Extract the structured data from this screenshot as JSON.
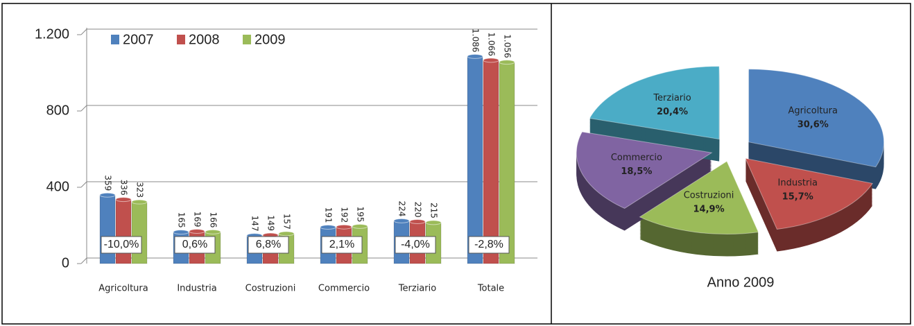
{
  "chart_data": [
    {
      "type": "bar",
      "categories": [
        "Agricoltura",
        "Industria",
        "Costruzioni",
        "Commercio",
        "Terziario",
        "Totale"
      ],
      "series": [
        {
          "name": "2007",
          "color": "#4f81bd",
          "values": [
            359,
            165,
            147,
            191,
            224,
            1086
          ],
          "value_labels": [
            "359",
            "165",
            "147",
            "191",
            "224",
            "1.086"
          ]
        },
        {
          "name": "2008",
          "color": "#c0504d",
          "values": [
            336,
            169,
            149,
            192,
            220,
            1066
          ],
          "value_labels": [
            "336",
            "169",
            "149",
            "192",
            "220",
            "1.066"
          ]
        },
        {
          "name": "2009",
          "color": "#9bbb59",
          "values": [
            323,
            166,
            157,
            195,
            215,
            1056
          ],
          "value_labels": [
            "323",
            "166",
            "157",
            "195",
            "215",
            "1.056"
          ]
        }
      ],
      "annotations": [
        "-10,0%",
        "0,6%",
        "6,8%",
        "2,1%",
        "-4,0%",
        "-2,8%"
      ],
      "ylim": [
        0,
        1200
      ],
      "yticks": [
        0,
        400,
        800,
        {
          "value": 1200,
          "label": "1.200"
        }
      ],
      "grid": true,
      "legend": "top-left"
    },
    {
      "type": "pie",
      "title": "Anno 2009",
      "categories": [
        "Agricoltura",
        "Industria",
        "Costruzioni",
        "Commercio",
        "Terziario"
      ],
      "values": [
        30.6,
        15.7,
        14.9,
        18.5,
        20.4
      ],
      "value_labels": [
        "30,6%",
        "15,7%",
        "14,9%",
        "18,5%",
        "20,4%"
      ],
      "colors": [
        "#4f81bd",
        "#c0504d",
        "#9bbb59",
        "#8064a2",
        "#4bacc6"
      ]
    }
  ]
}
